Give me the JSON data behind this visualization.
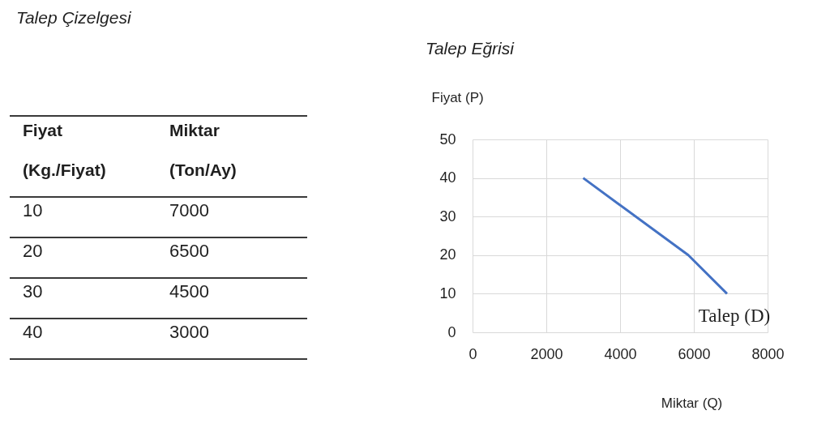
{
  "chart_data": {
    "type": "line",
    "title": "Talep Eğrisi",
    "xlabel": "Miktar (Q)",
    "ylabel": "Fiyat (P)",
    "x": [
      3000,
      5850,
      6900
    ],
    "series": [
      {
        "name": "Talep (D)",
        "color": "#4472c4",
        "values": [
          40,
          20,
          10
        ]
      }
    ],
    "xlim": [
      0,
      8000
    ],
    "ylim": [
      0,
      50
    ],
    "xticks": [
      0,
      2000,
      4000,
      6000,
      8000
    ],
    "yticks": [
      0,
      10,
      20,
      30,
      40,
      50
    ],
    "grid": true,
    "annotations": [
      "Talep Çizelgesi",
      "Fiyat (Kg./Fiyat)",
      "Miktar (Ton/Ay)",
      "10",
      "7000",
      "20",
      "6500",
      "30",
      "4500",
      "40",
      "3000"
    ]
  }
}
